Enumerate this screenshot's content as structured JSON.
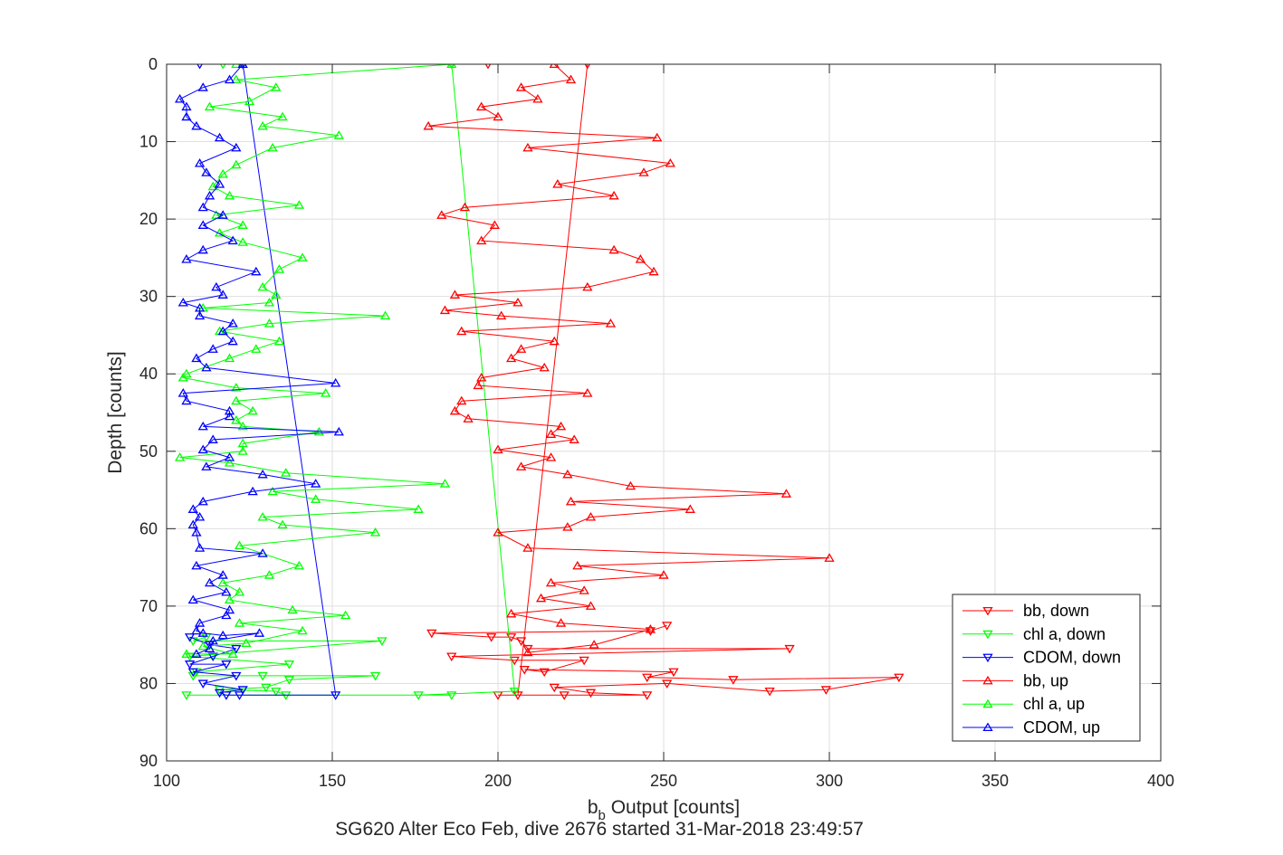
{
  "chart_data": {
    "type": "line",
    "xlabel_main": "b",
    "xlabel_sub": "b",
    "xlabel_rest": " Output [counts]",
    "subtitle": "SG620 Alter Eco Feb, dive 2676 started 31-Mar-2018 23:49:57",
    "ylabel": "Depth [counts]",
    "xlim": [
      100,
      400
    ],
    "ylim": [
      0,
      90
    ],
    "y_reversed": true,
    "grid": true,
    "legend_position": "bottom-right",
    "xticks": [
      100,
      150,
      200,
      250,
      300,
      350,
      400
    ],
    "yticks": [
      0,
      10,
      20,
      30,
      40,
      50,
      60,
      70,
      80,
      90
    ],
    "series": [
      {
        "name": "bb, down",
        "color": "#ff0000",
        "marker": "triangle-down",
        "points": [
          [
            197,
            0
          ],
          [
            227,
            0
          ],
          [
            206,
            81.5
          ],
          [
            200,
            81.5
          ],
          [
            220,
            81.5
          ],
          [
            245,
            81.5
          ],
          [
            228,
            81.2
          ],
          [
            217,
            80.5
          ],
          [
            251,
            80
          ],
          [
            282,
            81
          ],
          [
            299,
            80.8
          ],
          [
            321,
            79.2
          ],
          [
            271,
            79.5
          ],
          [
            245,
            79.2
          ],
          [
            253,
            78.5
          ],
          [
            208,
            78.2
          ],
          [
            214,
            78.5
          ],
          [
            226,
            77
          ],
          [
            205,
            77
          ],
          [
            186,
            76.5
          ],
          [
            288,
            75.5
          ],
          [
            209,
            75.5
          ],
          [
            207,
            74.5
          ],
          [
            204,
            74
          ],
          [
            198,
            74
          ],
          [
            180,
            73.5
          ],
          [
            246,
            73.2
          ],
          [
            251,
            72.5
          ]
        ]
      },
      {
        "name": "chl a, down",
        "color": "#00ff00",
        "marker": "triangle-down",
        "points": [
          [
            117,
            0
          ],
          [
            186,
            0
          ],
          [
            205,
            81
          ],
          [
            176,
            81.5
          ],
          [
            186,
            81.5
          ],
          [
            106,
            81.5
          ],
          [
            136,
            81.5
          ],
          [
            133,
            81
          ],
          [
            116,
            80.8
          ],
          [
            130,
            80.5
          ],
          [
            137,
            79.5
          ],
          [
            163,
            79
          ],
          [
            129,
            79
          ],
          [
            108,
            79
          ],
          [
            109,
            78.5
          ],
          [
            137,
            77.5
          ],
          [
            107,
            76.5
          ],
          [
            165,
            74.5
          ],
          [
            108,
            74.5
          ],
          [
            112,
            74
          ]
        ]
      },
      {
        "name": "CDOM, down",
        "color": "#0000ff",
        "marker": "triangle-down",
        "points": [
          [
            110,
            0
          ],
          [
            123,
            0
          ],
          [
            151,
            81.5
          ],
          [
            122,
            81.5
          ],
          [
            118,
            81.5
          ],
          [
            116,
            81.2
          ],
          [
            123,
            80.8
          ],
          [
            111,
            80
          ],
          [
            121,
            79
          ],
          [
            108,
            78.5
          ],
          [
            118,
            77.5
          ],
          [
            107,
            77.5
          ],
          [
            114,
            76.5
          ],
          [
            121,
            75.5
          ],
          [
            113,
            75
          ],
          [
            107,
            74
          ]
        ]
      },
      {
        "name": "bb, up",
        "color": "#ff0000",
        "marker": "triangle-up",
        "points": [
          [
            217,
            0
          ],
          [
            222,
            2
          ],
          [
            207,
            3
          ],
          [
            212,
            4.5
          ],
          [
            195,
            5.5
          ],
          [
            200,
            6.8
          ],
          [
            179,
            8
          ],
          [
            248,
            9.5
          ],
          [
            209,
            10.8
          ],
          [
            252,
            12.8
          ],
          [
            244,
            14
          ],
          [
            218,
            15.5
          ],
          [
            235,
            17
          ],
          [
            190,
            18.5
          ],
          [
            183,
            19.5
          ],
          [
            199,
            20.8
          ],
          [
            195,
            22.8
          ],
          [
            235,
            24
          ],
          [
            243,
            25.2
          ],
          [
            247,
            26.8
          ],
          [
            227,
            28.8
          ],
          [
            187,
            29.8
          ],
          [
            206,
            30.8
          ],
          [
            184,
            31.8
          ],
          [
            201,
            32.5
          ],
          [
            234,
            33.5
          ],
          [
            189,
            34.5
          ],
          [
            217,
            35.8
          ],
          [
            207,
            36.8
          ],
          [
            204,
            38
          ],
          [
            214,
            39.2
          ],
          [
            195,
            40.5
          ],
          [
            194,
            41.5
          ],
          [
            227,
            42.5
          ],
          [
            189,
            43.5
          ],
          [
            187,
            44.8
          ],
          [
            191,
            45.8
          ],
          [
            219,
            46.8
          ],
          [
            216,
            47.8
          ],
          [
            223,
            48.5
          ],
          [
            200,
            49.8
          ],
          [
            216,
            50.8
          ],
          [
            207,
            52
          ],
          [
            221,
            53
          ],
          [
            240,
            54.5
          ],
          [
            287,
            55.5
          ],
          [
            222,
            56.5
          ],
          [
            258,
            57.5
          ],
          [
            228,
            58.5
          ],
          [
            221,
            59.8
          ],
          [
            200,
            60.5
          ],
          [
            209,
            62.5
          ],
          [
            300,
            63.8
          ],
          [
            224,
            64.8
          ],
          [
            250,
            66
          ],
          [
            216,
            67
          ],
          [
            226,
            68
          ],
          [
            213,
            69
          ],
          [
            228,
            70
          ],
          [
            204,
            71
          ],
          [
            219,
            72.2
          ],
          [
            246,
            73
          ],
          [
            229,
            75
          ],
          [
            209,
            76
          ]
        ]
      },
      {
        "name": "chl a, up",
        "color": "#00ff00",
        "marker": "triangle-up",
        "points": [
          [
            121,
            0
          ],
          [
            186,
            0
          ],
          [
            121,
            2
          ],
          [
            133,
            3
          ],
          [
            125,
            4.8
          ],
          [
            113,
            5.5
          ],
          [
            135,
            6.8
          ],
          [
            129,
            8
          ],
          [
            152,
            9.2
          ],
          [
            132,
            10.8
          ],
          [
            121,
            13
          ],
          [
            117,
            14.2
          ],
          [
            114,
            15.8
          ],
          [
            119,
            17
          ],
          [
            140,
            18.2
          ],
          [
            115,
            19.5
          ],
          [
            123,
            20.8
          ],
          [
            116,
            21.8
          ],
          [
            123,
            23
          ],
          [
            141,
            25
          ],
          [
            134,
            26.5
          ],
          [
            129,
            28.8
          ],
          [
            133,
            29.8
          ],
          [
            131,
            30.8
          ],
          [
            111,
            31.5
          ],
          [
            166,
            32.5
          ],
          [
            131,
            33.5
          ],
          [
            116,
            34.5
          ],
          [
            134,
            35.8
          ],
          [
            127,
            36.8
          ],
          [
            119,
            38
          ],
          [
            106,
            40
          ],
          [
            105,
            40.5
          ],
          [
            121,
            41.8
          ],
          [
            148,
            42.5
          ],
          [
            121,
            43.5
          ],
          [
            126,
            44.8
          ],
          [
            121,
            46
          ],
          [
            123,
            46.8
          ],
          [
            146,
            47.5
          ],
          [
            123,
            49
          ],
          [
            123,
            50
          ],
          [
            104,
            50.8
          ],
          [
            119,
            51.5
          ],
          [
            136,
            52.8
          ],
          [
            184,
            54.2
          ],
          [
            132,
            55.2
          ],
          [
            145,
            56.2
          ],
          [
            176,
            57.5
          ],
          [
            129,
            58.5
          ],
          [
            135,
            59.5
          ],
          [
            163,
            60.5
          ],
          [
            122,
            62.2
          ],
          [
            140,
            64.8
          ],
          [
            131,
            66
          ],
          [
            117,
            67
          ],
          [
            122,
            68.2
          ],
          [
            119,
            69.2
          ],
          [
            138,
            70.5
          ],
          [
            154,
            71.2
          ],
          [
            122,
            72.2
          ],
          [
            141,
            73.2
          ],
          [
            124,
            74.8
          ],
          [
            111,
            75.2
          ],
          [
            120,
            76.2
          ],
          [
            106,
            76.2
          ]
        ]
      },
      {
        "name": "CDOM, up",
        "color": "#0000ff",
        "marker": "triangle-up",
        "points": [
          [
            123,
            0
          ],
          [
            119,
            2
          ],
          [
            111,
            3
          ],
          [
            104,
            4.5
          ],
          [
            106,
            5.5
          ],
          [
            106,
            6.8
          ],
          [
            109,
            8
          ],
          [
            116,
            9.5
          ],
          [
            121,
            10.8
          ],
          [
            110,
            12.8
          ],
          [
            112,
            14
          ],
          [
            116,
            15.5
          ],
          [
            113,
            17
          ],
          [
            111,
            18.5
          ],
          [
            117,
            19.5
          ],
          [
            111,
            20.8
          ],
          [
            120,
            22.8
          ],
          [
            111,
            24
          ],
          [
            106,
            25.2
          ],
          [
            127,
            26.8
          ],
          [
            115,
            28.8
          ],
          [
            117,
            29.8
          ],
          [
            105,
            30.8
          ],
          [
            110,
            31.5
          ],
          [
            110,
            32.5
          ],
          [
            120,
            33.5
          ],
          [
            117,
            34.5
          ],
          [
            120,
            35.8
          ],
          [
            114,
            36.8
          ],
          [
            109,
            38
          ],
          [
            112,
            39.2
          ],
          [
            151,
            41.2
          ],
          [
            105,
            42.5
          ],
          [
            106,
            43.5
          ],
          [
            119,
            44.8
          ],
          [
            119,
            45.5
          ],
          [
            111,
            46.8
          ],
          [
            152,
            47.5
          ],
          [
            114,
            48.5
          ],
          [
            111,
            49.8
          ],
          [
            119,
            50.8
          ],
          [
            112,
            52
          ],
          [
            129,
            53
          ],
          [
            145,
            54.2
          ],
          [
            126,
            55.2
          ],
          [
            111,
            56.5
          ],
          [
            108,
            57.5
          ],
          [
            110,
            58.5
          ],
          [
            108,
            59.5
          ],
          [
            109,
            60.5
          ],
          [
            110,
            62.5
          ],
          [
            129,
            63.2
          ],
          [
            109,
            64.8
          ],
          [
            117,
            66
          ],
          [
            113,
            67
          ],
          [
            118,
            68.2
          ],
          [
            108,
            69.2
          ],
          [
            119,
            70.5
          ],
          [
            118,
            71.2
          ],
          [
            110,
            72.2
          ],
          [
            109,
            73.2
          ],
          [
            111,
            73.5
          ],
          [
            117,
            73.8
          ],
          [
            128,
            73.5
          ],
          [
            114,
            74.5
          ],
          [
            113,
            75.5
          ],
          [
            109,
            76.2
          ]
        ]
      }
    ]
  }
}
